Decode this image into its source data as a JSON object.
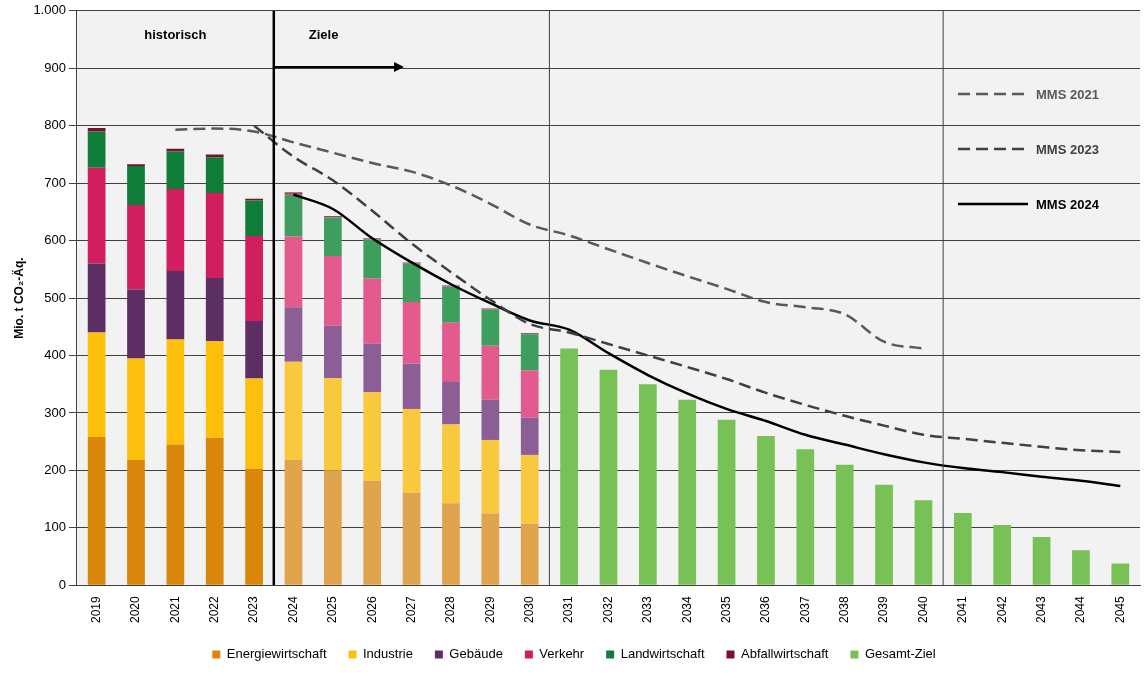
{
  "chart_data": {
    "type": "bar",
    "stacked": true,
    "ylabel": "Mio. t CO₂-Äq.",
    "x": [
      2019,
      2020,
      2021,
      2022,
      2023,
      2024,
      2025,
      2026,
      2027,
      2028,
      2029,
      2030,
      2031,
      2032,
      2033,
      2034,
      2035,
      2036,
      2037,
      2038,
      2039,
      2040,
      2041,
      2042,
      2043,
      2044,
      2045
    ],
    "xlim": [
      2018.5,
      2045.5
    ],
    "xticks": [
      2019,
      2020,
      2021,
      2022,
      2023,
      2024,
      2025,
      2026,
      2027,
      2028,
      2029,
      2030,
      2031,
      2032,
      2033,
      2034,
      2035,
      2036,
      2037,
      2038,
      2039,
      2040,
      2041,
      2042,
      2043,
      2044,
      2045
    ],
    "ylim": [
      0,
      1000
    ],
    "yticks": [
      0,
      100,
      200,
      300,
      400,
      500,
      600,
      700,
      800,
      900,
      {
        "value": 1000,
        "label": "1.000"
      }
    ],
    "grid": "y",
    "legend": "bottom",
    "series": [
      {
        "name": "Energiewirtschaft",
        "color": "#d9860b",
        "colors": [
          "#d9860b",
          "#d9860b",
          "#d9860b",
          "#d9860b",
          "#d9860b",
          "#e0a44e",
          "#e0a44e",
          "#e0a44e",
          "#e0a44e",
          "#e0a44e",
          "#e0a44e",
          "#e0a44e",
          null,
          null,
          null,
          null,
          null,
          null,
          null,
          null,
          null,
          null,
          null,
          null,
          null,
          null,
          null
        ],
        "values": [
          258,
          218,
          245,
          257,
          203,
          218,
          200,
          182,
          161,
          143,
          125,
          107,
          null,
          null,
          null,
          null,
          null,
          null,
          null,
          null,
          null,
          null,
          null,
          null,
          null,
          null,
          null
        ]
      },
      {
        "name": "Industrie",
        "color": "#fcc00c",
        "colors": [
          "#fcc00c",
          "#fcc00c",
          "#fcc00c",
          "#fcc00c",
          "#fcc00c",
          "#f8c93e",
          "#f8c93e",
          "#f8c93e",
          "#f8c93e",
          "#f8c93e",
          "#f8c93e",
          "#f8c93e",
          null,
          null,
          null,
          null,
          null,
          null,
          null,
          null,
          null,
          null,
          null,
          null,
          null,
          null,
          null
        ],
        "values": [
          182,
          177,
          183,
          168,
          157,
          171,
          161,
          154,
          146,
          137,
          128,
          120,
          null,
          null,
          null,
          null,
          null,
          null,
          null,
          null,
          null,
          null,
          null,
          null,
          null,
          null,
          null
        ]
      },
      {
        "name": "Gebäude",
        "color": "#5c2e63",
        "colors": [
          "#5c2e63",
          "#5c2e63",
          "#5c2e63",
          "#5c2e63",
          "#5c2e63",
          "#8c5e96",
          "#8c5e96",
          "#8c5e96",
          "#8c5e96",
          "#8c5e96",
          "#8c5e96",
          "#8c5e96",
          null,
          null,
          null,
          null,
          null,
          null,
          null,
          null,
          null,
          null,
          null,
          null,
          null,
          null,
          null
        ],
        "values": [
          120,
          120,
          119,
          110,
          100,
          95,
          91,
          85,
          79,
          74,
          70,
          65,
          null,
          null,
          null,
          null,
          null,
          null,
          null,
          null,
          null,
          null,
          null,
          null,
          null,
          null,
          null
        ]
      },
      {
        "name": "Verkehr",
        "color": "#d01e5e",
        "colors": [
          "#d01e5e",
          "#d01e5e",
          "#d01e5e",
          "#d01e5e",
          "#d01e5e",
          "#e35b8e",
          "#e35b8e",
          "#e35b8e",
          "#e35b8e",
          "#e35b8e",
          "#e35b8e",
          "#e35b8e",
          null,
          null,
          null,
          null,
          null,
          null,
          null,
          null,
          null,
          null,
          null,
          null,
          null,
          null,
          null
        ],
        "values": [
          167,
          147,
          143,
          148,
          148,
          123,
          121,
          113,
          107,
          103,
          94,
          82,
          null,
          null,
          null,
          null,
          null,
          null,
          null,
          null,
          null,
          null,
          null,
          null,
          null,
          null,
          null
        ]
      },
      {
        "name": "Landwirtschaft",
        "color": "#0f7c38",
        "colors": [
          "#0f7c38",
          "#0f7c38",
          "#0f7c38",
          "#0f7c38",
          "#0f7c38",
          "#3e9e5e",
          "#3e9e5e",
          "#3e9e5e",
          "#3e9e5e",
          "#3e9e5e",
          "#3e9e5e",
          "#3e9e5e",
          null,
          null,
          null,
          null,
          null,
          null,
          null,
          null,
          null,
          null,
          null,
          null,
          null,
          null,
          null
        ],
        "values": [
          63,
          68,
          65,
          62,
          62,
          73,
          67,
          68,
          67,
          63,
          63,
          63,
          null,
          null,
          null,
          null,
          null,
          null,
          null,
          null,
          null,
          null,
          null,
          null,
          null,
          null,
          null
        ]
      },
      {
        "name": "Abfallwirtschaft",
        "color": "#7a0f30",
        "colors": [
          "#7a0f30",
          "#7a0f30",
          "#7a0f30",
          "#7a0f30",
          "#7a0f30",
          "#a5405e",
          "#a5405e",
          "#a5405e",
          "#a5405e",
          "#a5405e",
          "#a5405e",
          "#a5405e",
          null,
          null,
          null,
          null,
          null,
          null,
          null,
          null,
          null,
          null,
          null,
          null,
          null,
          null,
          null
        ],
        "values": [
          6,
          3,
          5,
          5,
          3,
          4,
          3,
          2,
          2,
          2,
          2,
          2,
          null,
          null,
          null,
          null,
          null,
          null,
          null,
          null,
          null,
          null,
          null,
          null,
          null,
          null,
          null
        ]
      },
      {
        "name": "Gesamt-Ziel",
        "color": "#77c157",
        "values": [
          null,
          null,
          null,
          null,
          null,
          null,
          null,
          null,
          null,
          null,
          null,
          null,
          412,
          375,
          350,
          323,
          288,
          260,
          237,
          210,
          175,
          148,
          126,
          105,
          84,
          61,
          38
        ]
      },
      {
        "name": "MMS 2021",
        "type": "line",
        "color": "#595959",
        "line_style": "dashed",
        "marker": "none",
        "x": [
          2021,
          2022,
          2023,
          2024,
          2025,
          2026,
          2027,
          2028,
          2029,
          2030,
          2031,
          2032,
          2033,
          2034,
          2035,
          2036,
          2037,
          2038,
          2039,
          2040
        ],
        "values": [
          793,
          795,
          790,
          771,
          753,
          735,
          720,
          696,
          664,
          628,
          609,
          585,
          561,
          538,
          516,
          493,
          484,
          472,
          424,
          412
        ]
      },
      {
        "name": "MMS 2023",
        "type": "line",
        "color": "#404040",
        "line_style": "dashed",
        "marker": "none",
        "x": [
          2023,
          2024,
          2025,
          2026,
          2027,
          2028,
          2029,
          2030,
          2031,
          2032,
          2033,
          2034,
          2035,
          2036,
          2037,
          2038,
          2039,
          2040,
          2041,
          2042,
          2043,
          2044,
          2045
        ],
        "values": [
          800,
          746,
          705,
          652,
          595,
          545,
          497,
          455,
          440,
          420,
          400,
          380,
          359,
          335,
          314,
          295,
          278,
          262,
          255,
          248,
          241,
          235,
          232
        ]
      },
      {
        "name": "MMS 2024",
        "type": "line",
        "color": "#000000",
        "line_style": "solid",
        "marker": "none",
        "x": [
          2024,
          2025,
          2026,
          2027,
          2028,
          2029,
          2030,
          2031,
          2032,
          2033,
          2034,
          2035,
          2036,
          2037,
          2038,
          2039,
          2040,
          2041,
          2042,
          2043,
          2044,
          2045
        ],
        "values": [
          680,
          655,
          604,
          562,
          524,
          491,
          461,
          445,
          404,
          366,
          334,
          307,
          286,
          262,
          245,
          228,
          214,
          204,
          197,
          189,
          182,
          173
        ]
      }
    ],
    "ref_lines": [
      {
        "axis": "x",
        "value": 2023.5,
        "color": "#000000",
        "line_style": "solid"
      },
      {
        "axis": "x",
        "value": 2030.5,
        "color": "#404040",
        "line_style": "solid"
      },
      {
        "axis": "x",
        "value": 2040.5,
        "color": "#404040",
        "line_style": "solid"
      }
    ],
    "annotations": [
      "historisch",
      "Ziele"
    ]
  }
}
